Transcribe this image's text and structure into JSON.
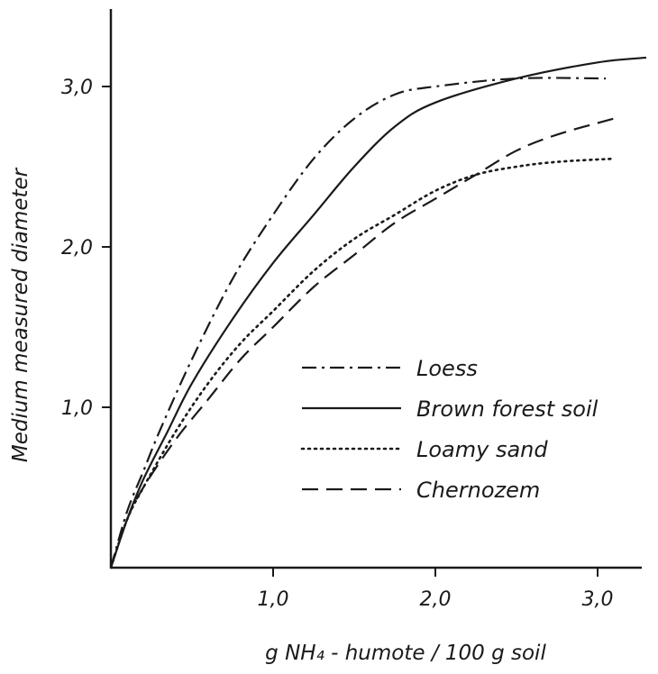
{
  "chart_data": {
    "type": "line",
    "title": "",
    "xlabel": "g  NH₄ - humote / 100 g  soil",
    "ylabel": "Medium  measured  diameter",
    "xlim": [
      0,
      3.3
    ],
    "ylim": [
      0,
      3.5
    ],
    "x_ticks": [
      {
        "value": 1.0,
        "label": "1,0"
      },
      {
        "value": 2.0,
        "label": "2,0"
      },
      {
        "value": 3.0,
        "label": "3,0"
      }
    ],
    "y_ticks": [
      {
        "value": 1.0,
        "label": "1,0"
      },
      {
        "value": 2.0,
        "label": "2,0"
      },
      {
        "value": 3.0,
        "label": "3,0"
      }
    ],
    "grid": false,
    "legend_position": "center-right",
    "series": [
      {
        "name": "Loess",
        "dash": "dashdot",
        "points": [
          [
            0,
            0
          ],
          [
            0.1,
            0.35
          ],
          [
            0.2,
            0.6
          ],
          [
            0.3,
            0.85
          ],
          [
            0.5,
            1.3
          ],
          [
            0.75,
            1.8
          ],
          [
            1.0,
            2.2
          ],
          [
            1.25,
            2.55
          ],
          [
            1.5,
            2.8
          ],
          [
            1.75,
            2.95
          ],
          [
            2.0,
            3.0
          ],
          [
            2.5,
            3.05
          ],
          [
            3.05,
            3.05
          ]
        ]
      },
      {
        "name": "Brown forest soil",
        "dash": "solid",
        "points": [
          [
            0,
            0
          ],
          [
            0.1,
            0.3
          ],
          [
            0.2,
            0.55
          ],
          [
            0.35,
            0.85
          ],
          [
            0.5,
            1.15
          ],
          [
            0.75,
            1.55
          ],
          [
            1.0,
            1.9
          ],
          [
            1.25,
            2.2
          ],
          [
            1.5,
            2.5
          ],
          [
            1.75,
            2.75
          ],
          [
            2.0,
            2.9
          ],
          [
            2.5,
            3.05
          ],
          [
            3.0,
            3.15
          ],
          [
            3.3,
            3.18
          ]
        ]
      },
      {
        "name": "Loamy sand",
        "dash": "dotted",
        "points": [
          [
            0,
            0
          ],
          [
            0.1,
            0.3
          ],
          [
            0.2,
            0.5
          ],
          [
            0.4,
            0.85
          ],
          [
            0.6,
            1.15
          ],
          [
            0.8,
            1.4
          ],
          [
            1.0,
            1.6
          ],
          [
            1.25,
            1.85
          ],
          [
            1.5,
            2.05
          ],
          [
            1.75,
            2.2
          ],
          [
            2.0,
            2.35
          ],
          [
            2.25,
            2.45
          ],
          [
            2.5,
            2.5
          ],
          [
            2.75,
            2.53
          ],
          [
            3.1,
            2.55
          ]
        ]
      },
      {
        "name": "Chernozem",
        "dash": "dashed",
        "points": [
          [
            0,
            0
          ],
          [
            0.1,
            0.3
          ],
          [
            0.2,
            0.5
          ],
          [
            0.4,
            0.8
          ],
          [
            0.6,
            1.05
          ],
          [
            0.8,
            1.3
          ],
          [
            1.0,
            1.5
          ],
          [
            1.25,
            1.75
          ],
          [
            1.5,
            1.95
          ],
          [
            1.75,
            2.15
          ],
          [
            2.0,
            2.3
          ],
          [
            2.25,
            2.45
          ],
          [
            2.5,
            2.6
          ],
          [
            2.75,
            2.7
          ],
          [
            3.1,
            2.8
          ]
        ]
      }
    ]
  }
}
